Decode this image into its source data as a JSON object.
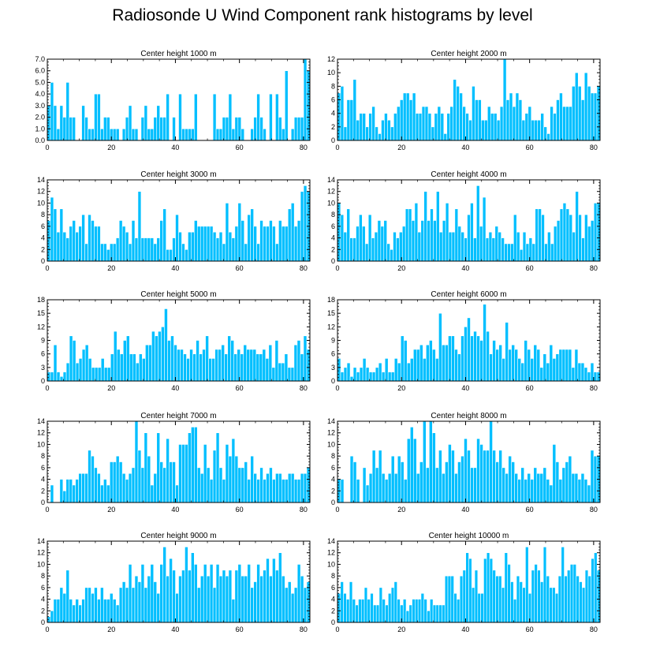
{
  "title": "Radiosonde U Wind Component rank histograms by level",
  "colors": {
    "bar": "#00bfff",
    "bar_edge": "#ffffff",
    "axis": "#000000"
  },
  "chart_data": [
    {
      "type": "bar",
      "title": "Center height 1000 m",
      "xlim": [
        0,
        82
      ],
      "ylim": [
        0,
        7
      ],
      "xticks": [
        0,
        20,
        40,
        60,
        80
      ],
      "yticks": [
        "0.0",
        "1.0",
        "2.0",
        "3.0",
        "4.0",
        "5.0",
        "6.0",
        "7.0"
      ],
      "values": [
        3,
        5,
        3,
        1,
        3,
        2,
        5,
        2,
        2,
        0,
        0,
        3,
        2,
        1,
        1,
        4,
        4,
        1,
        2,
        2,
        1,
        1,
        1,
        0,
        1,
        2,
        3,
        1,
        1,
        0,
        2,
        3,
        1,
        1,
        2,
        3,
        2,
        2,
        4,
        0,
        2,
        0,
        4,
        1,
        1,
        1,
        1,
        4,
        0,
        0,
        0,
        0,
        0,
        4,
        1,
        1,
        2,
        2,
        4,
        1,
        2,
        2,
        1,
        0,
        0,
        1,
        2,
        4,
        2,
        1,
        0,
        4,
        0,
        4,
        2,
        1,
        6,
        0,
        1,
        2,
        2,
        2,
        7,
        6
      ]
    },
    {
      "type": "bar",
      "title": "Center height 2000 m",
      "xlim": [
        0,
        82
      ],
      "ylim": [
        0,
        12
      ],
      "xticks": [
        0,
        20,
        40,
        60,
        80
      ],
      "yticks": [
        "0",
        "2",
        "4",
        "6",
        "8",
        "10",
        "12"
      ],
      "values": [
        7,
        8,
        2,
        6,
        6,
        9,
        3,
        4,
        4,
        2,
        4,
        5,
        2,
        1,
        3,
        4,
        3,
        2,
        4,
        5,
        6,
        7,
        7,
        6,
        7,
        4,
        4,
        5,
        5,
        4,
        2,
        4,
        5,
        4,
        1,
        4,
        5,
        9,
        8,
        7,
        5,
        4,
        3,
        8,
        6,
        6,
        3,
        3,
        5,
        4,
        4,
        3,
        5,
        12,
        6,
        7,
        5,
        7,
        6,
        3,
        4,
        5,
        3,
        3,
        3,
        4,
        2,
        1,
        5,
        4,
        6,
        7,
        5,
        5,
        5,
        8,
        10,
        8,
        6,
        10,
        8,
        7,
        7,
        8
      ]
    },
    {
      "type": "bar",
      "title": "Center height 3000 m",
      "xlim": [
        0,
        82
      ],
      "ylim": [
        0,
        14
      ],
      "xticks": [
        0,
        20,
        40,
        60,
        80
      ],
      "yticks": [
        "0",
        "2",
        "4",
        "6",
        "8",
        "10",
        "12",
        "14"
      ],
      "values": [
        7,
        11,
        9,
        5,
        9,
        5,
        4,
        6,
        7,
        5,
        6,
        8,
        3,
        8,
        7,
        6,
        6,
        3,
        3,
        2,
        3,
        3,
        4,
        7,
        6,
        5,
        3,
        7,
        4,
        12,
        4,
        4,
        4,
        4,
        3,
        4,
        7,
        9,
        2,
        2,
        4,
        8,
        5,
        3,
        2,
        5,
        5,
        7,
        6,
        6,
        6,
        6,
        6,
        5,
        4,
        5,
        3,
        10,
        5,
        4,
        6,
        10,
        7,
        3,
        8,
        9,
        6,
        3,
        7,
        6,
        6,
        7,
        6,
        3,
        7,
        6,
        6,
        9,
        10,
        6,
        7,
        12,
        13,
        12
      ]
    },
    {
      "type": "bar",
      "title": "Center height 4000 m",
      "xlim": [
        0,
        82
      ],
      "ylim": [
        0,
        14
      ],
      "xticks": [
        0,
        20,
        40,
        60,
        80
      ],
      "yticks": [
        "0",
        "2",
        "4",
        "6",
        "8",
        "10",
        "12",
        "14"
      ],
      "values": [
        10,
        8,
        5,
        9,
        4,
        4,
        6,
        8,
        6,
        3,
        8,
        4,
        5,
        7,
        6,
        7,
        3,
        2,
        5,
        4,
        5,
        6,
        9,
        9,
        7,
        10,
        5,
        7,
        12,
        7,
        9,
        7,
        12,
        5,
        7,
        10,
        5,
        5,
        9,
        6,
        5,
        4,
        8,
        10,
        4,
        13,
        6,
        11,
        4,
        5,
        4,
        6,
        5,
        4,
        3,
        3,
        3,
        8,
        5,
        2,
        5,
        3,
        4,
        3,
        9,
        9,
        8,
        3,
        5,
        3,
        6,
        7,
        9,
        10,
        9,
        8,
        5,
        12,
        8,
        4,
        8,
        6,
        7,
        10,
        10
      ]
    },
    {
      "type": "bar",
      "title": "Center height 5000 m",
      "xlim": [
        0,
        82
      ],
      "ylim": [
        0,
        18
      ],
      "xticks": [
        0,
        20,
        40,
        60,
        80
      ],
      "yticks": [
        "0",
        "3",
        "6",
        "9",
        "12",
        "15",
        "18"
      ],
      "values": [
        2,
        2,
        8,
        2,
        1,
        2,
        4,
        10,
        9,
        4,
        5,
        7,
        8,
        5,
        3,
        3,
        3,
        5,
        3,
        3,
        6,
        11,
        7,
        6,
        9,
        10,
        6,
        6,
        4,
        6,
        5,
        8,
        8,
        11,
        10,
        11,
        12,
        16,
        9,
        10,
        8,
        7,
        7,
        6,
        5,
        7,
        6,
        9,
        6,
        7,
        10,
        5,
        5,
        7,
        7,
        8,
        6,
        10,
        9,
        6,
        7,
        6,
        8,
        7,
        7,
        7,
        6,
        6,
        7,
        5,
        8,
        3,
        9,
        4,
        4,
        6,
        3,
        3,
        8,
        9,
        6,
        10,
        7
      ]
    },
    {
      "type": "bar",
      "title": "Center height 6000 m",
      "xlim": [
        0,
        82
      ],
      "ylim": [
        0,
        18
      ],
      "xticks": [
        0,
        20,
        40,
        60,
        80
      ],
      "yticks": [
        "0",
        "3",
        "6",
        "9",
        "12",
        "15",
        "18"
      ],
      "values": [
        5,
        2,
        3,
        4,
        1,
        3,
        2,
        3,
        5,
        3,
        2,
        2,
        3,
        4,
        2,
        5,
        2,
        2,
        5,
        4,
        10,
        9,
        4,
        5,
        7,
        7,
        8,
        5,
        8,
        9,
        7,
        5,
        15,
        8,
        8,
        10,
        10,
        7,
        6,
        10,
        12,
        14,
        10,
        11,
        10,
        9,
        17,
        11,
        6,
        9,
        7,
        8,
        5,
        13,
        7,
        8,
        7,
        5,
        4,
        9,
        7,
        5,
        8,
        7,
        3,
        6,
        4,
        8,
        5,
        6,
        7,
        7,
        7,
        7,
        3,
        7,
        4,
        4,
        3,
        2,
        4,
        2,
        2
      ]
    },
    {
      "type": "bar",
      "title": "Center height 7000 m",
      "xlim": [
        0,
        82
      ],
      "ylim": [
        0,
        14
      ],
      "xticks": [
        0,
        20,
        40,
        60,
        80
      ],
      "yticks": [
        "0",
        "2",
        "4",
        "6",
        "8",
        "10",
        "12",
        "14"
      ],
      "values": [
        0,
        3,
        0,
        0,
        4,
        2,
        4,
        4,
        3,
        4,
        5,
        5,
        5,
        9,
        8,
        6,
        5,
        3,
        4,
        3,
        7,
        7,
        8,
        7,
        5,
        4,
        5,
        6,
        14,
        9,
        6,
        12,
        8,
        3,
        5,
        12,
        7,
        6,
        11,
        7,
        7,
        3,
        10,
        10,
        10,
        12,
        13,
        13,
        6,
        5,
        10,
        6,
        4,
        9,
        12,
        6,
        4,
        10,
        8,
        11,
        8,
        6,
        6,
        7,
        4,
        8,
        5,
        4,
        6,
        4,
        5,
        6,
        4,
        5,
        5,
        4,
        4,
        5,
        5,
        4,
        4,
        5,
        5,
        6
      ]
    },
    {
      "type": "bar",
      "title": "Center height 8000 m",
      "xlim": [
        0,
        82
      ],
      "ylim": [
        0,
        14
      ],
      "xticks": [
        0,
        20,
        40,
        60,
        80
      ],
      "yticks": [
        "0",
        "2",
        "4",
        "6",
        "8",
        "10",
        "12",
        "14"
      ],
      "values": [
        4,
        4,
        0,
        0,
        8,
        7,
        4,
        0,
        6,
        3,
        5,
        9,
        6,
        9,
        5,
        4,
        5,
        8,
        5,
        8,
        7,
        4,
        11,
        13,
        11,
        5,
        7,
        14,
        6,
        14,
        12,
        6,
        9,
        5,
        7,
        10,
        9,
        5,
        7,
        8,
        11,
        9,
        6,
        6,
        11,
        10,
        9,
        9,
        14,
        9,
        7,
        9,
        6,
        5,
        8,
        7,
        5,
        4,
        6,
        4,
        5,
        4,
        6,
        5,
        5,
        6,
        4,
        3,
        10,
        7,
        4,
        6,
        7,
        8,
        5,
        5,
        4,
        5,
        4,
        3,
        9,
        8,
        8
      ]
    },
    {
      "type": "bar",
      "title": "Center height 9000 m",
      "xlim": [
        0,
        82
      ],
      "ylim": [
        0,
        14
      ],
      "xticks": [
        0,
        20,
        40,
        60,
        80
      ],
      "yticks": [
        "0",
        "2",
        "4",
        "6",
        "8",
        "10",
        "12",
        "14"
      ],
      "values": [
        1,
        2,
        4,
        4,
        6,
        5,
        9,
        4,
        3,
        4,
        3,
        4,
        6,
        6,
        5,
        6,
        4,
        6,
        4,
        4,
        5,
        4,
        3,
        6,
        7,
        6,
        10,
        6,
        8,
        7,
        10,
        6,
        8,
        10,
        7,
        5,
        10,
        13,
        8,
        11,
        9,
        5,
        8,
        9,
        13,
        9,
        12,
        10,
        6,
        8,
        10,
        8,
        10,
        6,
        10,
        8,
        9,
        8,
        9,
        4,
        9,
        10,
        8,
        8,
        10,
        6,
        7,
        10,
        8,
        9,
        11,
        8,
        11,
        9,
        12,
        8,
        6,
        7,
        5,
        6,
        10,
        8,
        6,
        7
      ]
    },
    {
      "type": "bar",
      "title": "Center height 10000 m",
      "xlim": [
        0,
        82
      ],
      "ylim": [
        0,
        14
      ],
      "xticks": [
        0,
        20,
        40,
        60,
        80
      ],
      "yticks": [
        "0",
        "2",
        "4",
        "6",
        "8",
        "10",
        "12",
        "14"
      ],
      "values": [
        5,
        7,
        5,
        4,
        7,
        4,
        3,
        4,
        4,
        6,
        4,
        5,
        3,
        3,
        6,
        4,
        3,
        5,
        6,
        7,
        4,
        3,
        4,
        2,
        3,
        4,
        4,
        4,
        5,
        4,
        2,
        4,
        3,
        3,
        3,
        3,
        8,
        8,
        8,
        5,
        4,
        8,
        9,
        12,
        11,
        6,
        9,
        5,
        5,
        11,
        12,
        11,
        9,
        8,
        8,
        6,
        12,
        10,
        7,
        4,
        8,
        7,
        6,
        13,
        5,
        9,
        10,
        9,
        7,
        13,
        8,
        6,
        6,
        5,
        8,
        13,
        8,
        9,
        10,
        10,
        8,
        7,
        6,
        9,
        8,
        11,
        12,
        9
      ]
    }
  ]
}
